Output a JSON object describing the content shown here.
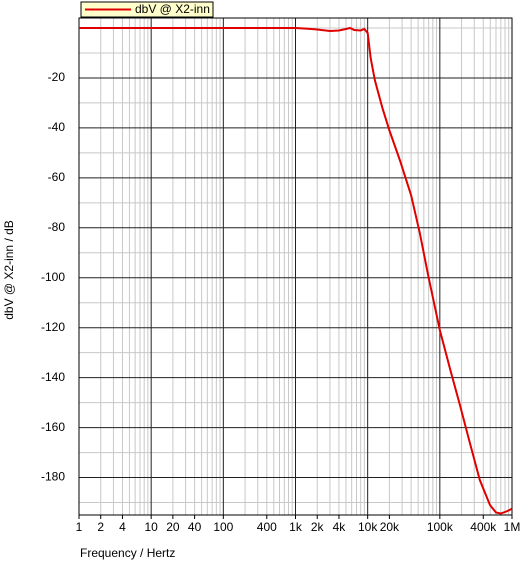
{
  "chart_data": {
    "type": "line",
    "x_label": "Frequency / Hertz",
    "y_label": "dbV @ X2-inn / dB",
    "log_x": true,
    "grid": true,
    "legend": "top-left",
    "legend_background": "#ffffcc",
    "xlim": [
      1,
      1000000
    ],
    "ylim": [
      -195,
      4
    ],
    "xticks": [
      1,
      2,
      4,
      10,
      20,
      40,
      100,
      400,
      {
        "value": 1000,
        "label": "1k"
      },
      {
        "value": 2000,
        "label": "2k"
      },
      {
        "value": 4000,
        "label": "4k"
      },
      {
        "value": 10000,
        "label": "10k"
      },
      {
        "value": 20000,
        "label": "20k"
      },
      {
        "value": 100000,
        "label": "100k"
      },
      {
        "value": 400000,
        "label": "400k"
      },
      {
        "value": 1000000,
        "label": "1M"
      }
    ],
    "x_major_grid": [
      1,
      10,
      100,
      1000,
      10000,
      100000,
      1000000
    ],
    "x_minor_grid": [
      2,
      3,
      4,
      5,
      6,
      7,
      8,
      9,
      20,
      30,
      40,
      50,
      60,
      70,
      80,
      90,
      200,
      300,
      400,
      500,
      600,
      700,
      800,
      900,
      2000,
      3000,
      4000,
      5000,
      6000,
      7000,
      8000,
      9000,
      20000,
      30000,
      40000,
      50000,
      60000,
      70000,
      80000,
      90000,
      200000,
      300000,
      400000,
      500000,
      600000,
      700000,
      800000,
      900000
    ],
    "yticks": [
      -180,
      -160,
      -140,
      -120,
      -100,
      -80,
      -60,
      -40,
      -20
    ],
    "y_minor_grid": [
      -190,
      -170,
      -150,
      -130,
      -110,
      -90,
      -70,
      -50,
      -30,
      -10,
      0
    ],
    "series": [
      {
        "name": "dbV @ X2-inn",
        "color": "#e00000",
        "x": [
          1,
          10,
          100,
          1000,
          1500,
          2000,
          3000,
          4000,
          5000,
          5700,
          6500,
          8000,
          9000,
          10000,
          11000,
          12600,
          16000,
          20000,
          28000,
          40000,
          52700,
          70000,
          100000,
          140000,
          190000,
          260000,
          358000,
          495000,
          600000,
          700000,
          850000,
          1000000
        ],
        "values": [
          0,
          0,
          0,
          0,
          -0.3,
          -0.6,
          -1.2,
          -1,
          -0.4,
          0,
          -0.8,
          -1,
          -0.4,
          -2,
          -12,
          -21,
          -32,
          -41,
          -53,
          -67,
          -82,
          -100,
          -121,
          -137,
          -151,
          -166,
          -181,
          -191,
          -194,
          -194.4,
          -193.5,
          -192.5
        ]
      }
    ]
  }
}
